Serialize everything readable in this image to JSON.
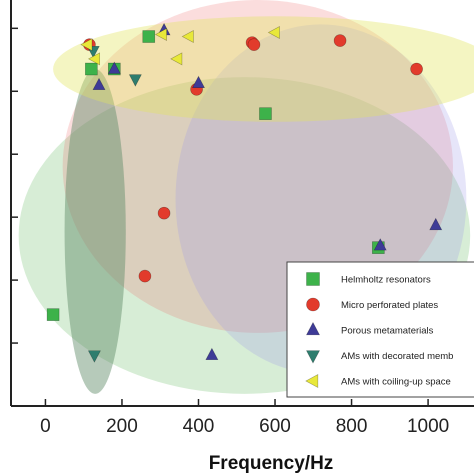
{
  "chart_data": {
    "type": "scatter",
    "xlabel": "Frequency/Hz",
    "ylabel": "",
    "xlim": [
      -90,
      1120
    ],
    "x_ticks": [
      0,
      200,
      400,
      600,
      800,
      1000
    ],
    "x_tick_labels": [
      "0",
      "200",
      "400",
      "600",
      "800",
      "1000"
    ],
    "ylim": [
      0,
      1
    ],
    "grid": false,
    "legend_placement": "bottom-right",
    "regions": [
      {
        "name": "Helmholtz resonators",
        "color": "#6fbf6a",
        "cx": 520,
        "cy": 0.42,
        "rx": 590,
        "ry": 0.39,
        "opacity": 0.28
      },
      {
        "name": "Micro perforated plates",
        "color": "#ef6464",
        "cx": 555,
        "cy": 0.59,
        "rx": 510,
        "ry": 0.41,
        "opacity": 0.22
      },
      {
        "name": "Porous metamaterials",
        "color": "#a09ce6",
        "cx": 720,
        "cy": 0.51,
        "rx": 380,
        "ry": 0.43,
        "opacity": 0.26
      },
      {
        "name": "AMs with decorated membranes",
        "color": "#5d8a66",
        "cx": 130,
        "cy": 0.43,
        "rx": 80,
        "ry": 0.4,
        "opacity": 0.45
      },
      {
        "name": "AMs with coiling-up spaces",
        "color": "#e2e45e",
        "cx": 600,
        "cy": 0.83,
        "rx": 580,
        "ry": 0.13,
        "opacity": 0.38
      }
    ],
    "series": [
      {
        "name": "Helmholtz resonators",
        "marker": "square",
        "color": "#3db24a",
        "points": [
          {
            "x": 20,
            "y": 0.225
          },
          {
            "x": 120,
            "y": 0.83
          },
          {
            "x": 180,
            "y": 0.83
          },
          {
            "x": 270,
            "y": 0.91
          },
          {
            "x": 575,
            "y": 0.72
          },
          {
            "x": 870,
            "y": 0.39
          }
        ]
      },
      {
        "name": "Micro perforated plates",
        "marker": "circle",
        "color": "#e23b2c",
        "points": [
          {
            "x": 115,
            "y": 0.89
          },
          {
            "x": 260,
            "y": 0.32
          },
          {
            "x": 310,
            "y": 0.475
          },
          {
            "x": 395,
            "y": 0.78
          },
          {
            "x": 540,
            "y": 0.895
          },
          {
            "x": 545,
            "y": 0.89
          },
          {
            "x": 770,
            "y": 0.9
          },
          {
            "x": 970,
            "y": 0.83
          }
        ]
      },
      {
        "name": "Porous metamaterials",
        "marker": "triangle-up",
        "color": "#3e3b97",
        "points": [
          {
            "x": 140,
            "y": 0.79
          },
          {
            "x": 180,
            "y": 0.83
          },
          {
            "x": 310,
            "y": 0.925
          },
          {
            "x": 400,
            "y": 0.795
          },
          {
            "x": 435,
            "y": 0.125
          },
          {
            "x": 875,
            "y": 0.395
          },
          {
            "x": 1020,
            "y": 0.445
          }
        ]
      },
      {
        "name": "AMs with decorated membranes",
        "marker": "triangle-down",
        "color": "#2e7d6e",
        "points": [
          {
            "x": 125,
            "y": 0.875
          },
          {
            "x": 128,
            "y": 0.125
          },
          {
            "x": 235,
            "y": 0.805
          }
        ]
      },
      {
        "name": "AMs with coiling-up spaces",
        "marker": "triangle-left",
        "color": "#e8e83a",
        "points": [
          {
            "x": 110,
            "y": 0.89
          },
          {
            "x": 130,
            "y": 0.855
          },
          {
            "x": 305,
            "y": 0.915
          },
          {
            "x": 345,
            "y": 0.855
          },
          {
            "x": 375,
            "y": 0.91
          },
          {
            "x": 600,
            "y": 0.92
          }
        ]
      }
    ],
    "legend": [
      {
        "label": "Helmholtz resonators",
        "marker": "square",
        "color": "#3db24a"
      },
      {
        "label": "Micro perforated plates",
        "marker": "circle",
        "color": "#e23b2c"
      },
      {
        "label": "Porous metamaterials",
        "marker": "triangle-up",
        "color": "#3e3b97"
      },
      {
        "label": "AMs with decorated memb",
        "marker": "triangle-down",
        "color": "#2e7d6e"
      },
      {
        "label": "AMs with coiling-up space",
        "marker": "triangle-left",
        "color": "#e8e83a"
      }
    ]
  }
}
